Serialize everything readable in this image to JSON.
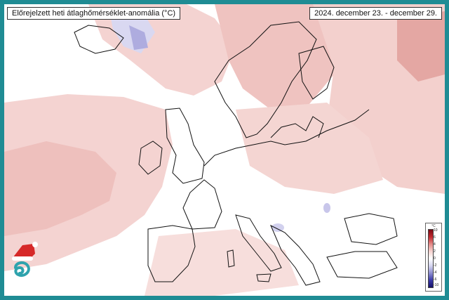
{
  "map": {
    "title": "Előrejelzett heti átlaghőmérséklet-anomália (°C)",
    "date_range": "2024. december 23.  - december 29.",
    "colors": {
      "frame": "#1f8c94",
      "warm_light": "#f6d8d6",
      "warm_mid": "#eab4b1",
      "warm_strong": "#d98581",
      "cold_light": "#d9d8f1",
      "cold_mid": "#a9a7dd"
    }
  },
  "colorbar": {
    "unit": "°C",
    "ticks": [
      "10",
      "6",
      "4",
      "2",
      "0",
      "-2",
      "-4",
      "-6",
      "-10"
    ]
  },
  "logo": {
    "name": "christmas-hat-logo"
  }
}
